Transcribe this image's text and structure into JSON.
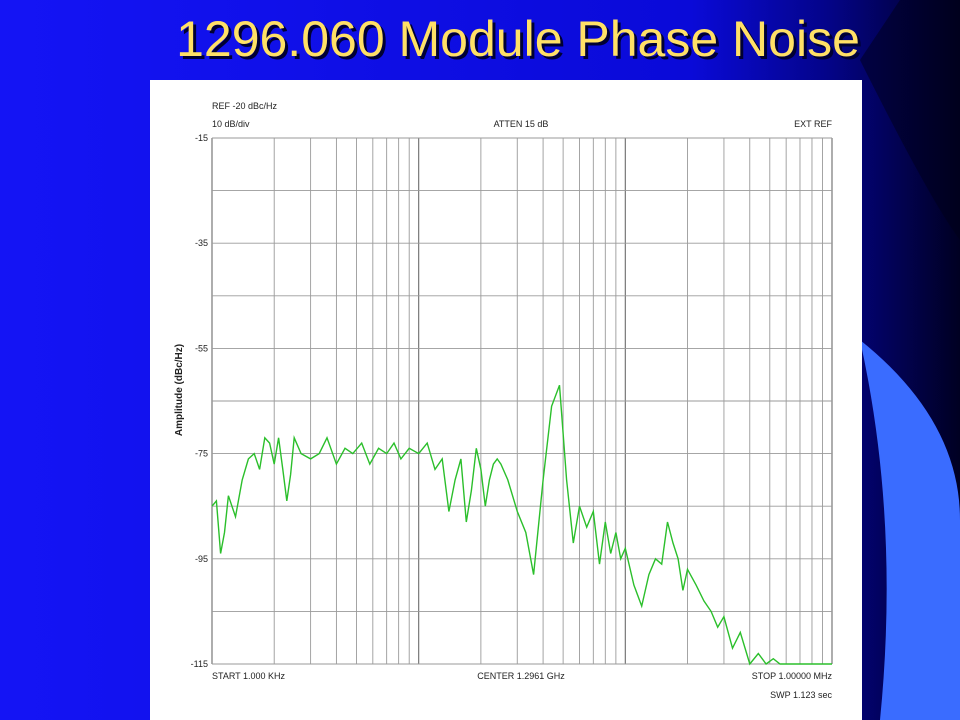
{
  "slide": {
    "title": "1296.060 Module Phase Noise",
    "colors": {
      "background": "#1010f0",
      "accent_right": "#000033",
      "trace": "#2bbf2b",
      "title_text": "#FFE066"
    }
  },
  "chart_data": {
    "type": "line",
    "title": "1296.060 Module Phase Noise",
    "ylabel": "Amplitude (dBc/Hz)",
    "xscale": "log",
    "xlim_hz": [
      1000,
      1000000
    ],
    "ylim": [
      -115,
      -15
    ],
    "y_ticks": [
      "-15",
      "-35",
      "-55",
      "-75",
      "-95",
      "-115"
    ],
    "grid": true,
    "header": {
      "ref": "REF -20 dBc/Hz",
      "scale": "10 dB/div",
      "atten": "ATTEN 15 dB",
      "ext_ref": "EXT REF"
    },
    "footer": {
      "start": "START 1.000 KHz",
      "center": "CENTER 1.2961 GHz",
      "stop": "STOP 1.00000 MHz",
      "sweep": "SWP 1.123 sec"
    },
    "series": [
      {
        "x_hz": [
          1000,
          1050,
          1100,
          1150,
          1200,
          1300,
          1400,
          1500,
          1600,
          1700,
          1800,
          1900,
          2000,
          2100,
          2200,
          2300,
          2400,
          2500,
          2700,
          3000,
          3300,
          3600,
          4000,
          4400,
          4800,
          5300,
          5800,
          6400,
          7000,
          7600,
          8200,
          9000,
          10000,
          11000,
          12000,
          13000,
          14000,
          15000,
          16000,
          17000,
          18000,
          19000,
          20000,
          21000,
          22000,
          23000,
          24000,
          25000,
          27000,
          30000,
          33000,
          36000,
          40000,
          44000,
          48000,
          52000,
          56000,
          60000,
          65000,
          70000,
          75000,
          80000,
          85000,
          90000,
          95000,
          100000,
          110000,
          120000,
          130000,
          140000,
          150000,
          160000,
          170000,
          180000,
          190000,
          200000,
          220000,
          240000,
          260000,
          280000,
          300000,
          330000,
          360000,
          400000,
          440000,
          480000,
          520000,
          560000,
          600000,
          650000,
          700000,
          800000,
          900000,
          1000000
        ],
        "y": [
          -85,
          -84,
          -94,
          -90,
          -83,
          -87,
          -80,
          -76,
          -75,
          -78,
          -72,
          -73,
          -77,
          -72,
          -78,
          -84,
          -79,
          -72,
          -75,
          -76,
          -75,
          -72,
          -77,
          -74,
          -75,
          -73,
          -77,
          -74,
          -75,
          -73,
          -76,
          -74,
          -75,
          -73,
          -78,
          -76,
          -86,
          -80,
          -76,
          -88,
          -82,
          -74,
          -78,
          -85,
          -80,
          -77,
          -76,
          -77,
          -80,
          -86,
          -90,
          -98,
          -80,
          -66,
          -62,
          -80,
          -92,
          -85,
          -89,
          -86,
          -96,
          -88,
          -94,
          -90,
          -95,
          -93,
          -100,
          -104,
          -98,
          -95,
          -96,
          -88,
          -92,
          -95,
          -101,
          -97,
          -100,
          -103,
          -105,
          -108,
          -106,
          -112,
          -109,
          -115,
          -113,
          -115,
          -114,
          -115,
          -115,
          -115,
          -115,
          -115,
          -115,
          -115
        ]
      }
    ]
  }
}
